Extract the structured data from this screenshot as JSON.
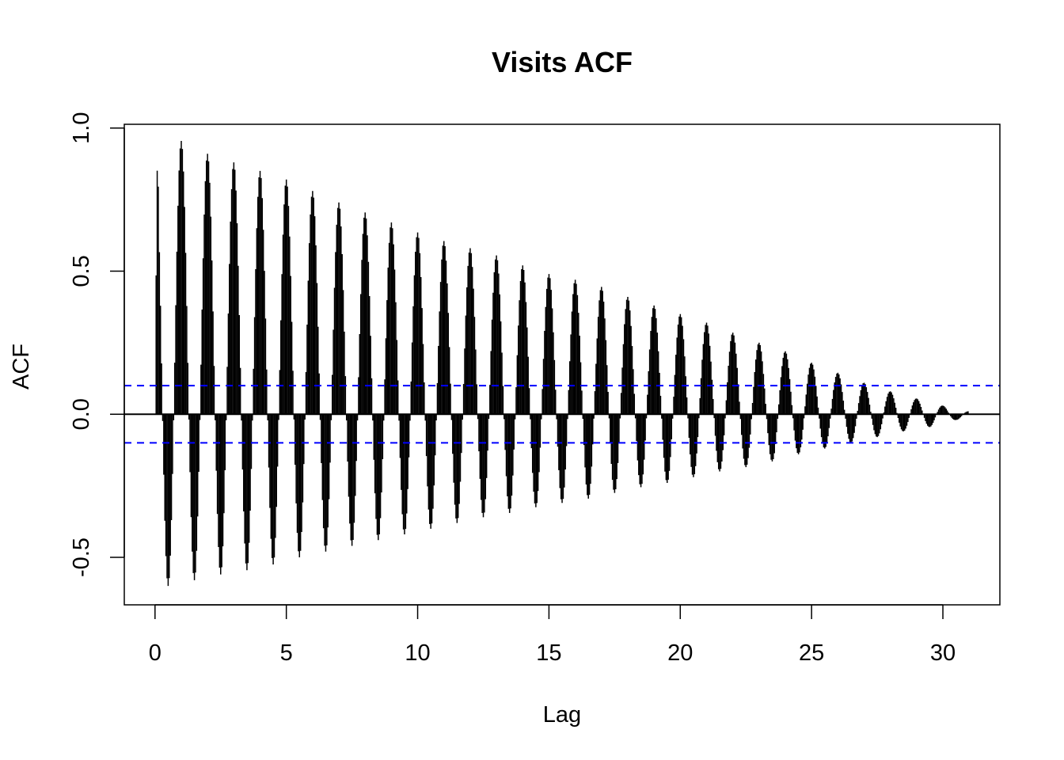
{
  "chart_data": {
    "type": "bar",
    "title": "Visits ACF",
    "xlabel": "Lag",
    "ylabel": "ACF",
    "xlim": [
      -1.17,
      32.17
    ],
    "ylim": [
      -0.666,
      1.013
    ],
    "x_ticks": [
      {
        "value": 0,
        "label": "0"
      },
      {
        "value": 5,
        "label": "5"
      },
      {
        "value": 10,
        "label": "10"
      },
      {
        "value": 15,
        "label": "15"
      },
      {
        "value": 20,
        "label": "20"
      },
      {
        "value": 25,
        "label": "25"
      },
      {
        "value": 30,
        "label": "30"
      }
    ],
    "y_ticks": [
      {
        "value": -0.5,
        "label": "-0.5"
      },
      {
        "value": 0.0,
        "label": "0.0"
      },
      {
        "value": 0.5,
        "label": "0.5"
      },
      {
        "value": 1.0,
        "label": "1.0"
      }
    ],
    "lag_spacing": 0.04167,
    "max_lag": 30.958,
    "confidence_band": 0.1,
    "grid": false,
    "legend": "none",
    "colors": {
      "bars": "#000000",
      "zero_line": "#000000",
      "confidence_lines": "#0000ff"
    },
    "day_lag_peaks": [
      {
        "lag": 0.125,
        "value": 0.795
      },
      {
        "lag": 1,
        "value": 0.955
      },
      {
        "lag": 2,
        "value": 0.91
      },
      {
        "lag": 3,
        "value": 0.88
      },
      {
        "lag": 4,
        "value": 0.85
      },
      {
        "lag": 5,
        "value": 0.82
      },
      {
        "lag": 6,
        "value": 0.78
      },
      {
        "lag": 7,
        "value": 0.74
      },
      {
        "lag": 8,
        "value": 0.705
      },
      {
        "lag": 9,
        "value": 0.67
      },
      {
        "lag": 10,
        "value": 0.635
      },
      {
        "lag": 11,
        "value": 0.605
      },
      {
        "lag": 12,
        "value": 0.58
      },
      {
        "lag": 13,
        "value": 0.555
      },
      {
        "lag": 14,
        "value": 0.52
      },
      {
        "lag": 15,
        "value": 0.49
      },
      {
        "lag": 16,
        "value": 0.47
      },
      {
        "lag": 17,
        "value": 0.445
      },
      {
        "lag": 18,
        "value": 0.41
      },
      {
        "lag": 19,
        "value": 0.38
      },
      {
        "lag": 20,
        "value": 0.35
      },
      {
        "lag": 21,
        "value": 0.32
      },
      {
        "lag": 22,
        "value": 0.285
      },
      {
        "lag": 23,
        "value": 0.25
      },
      {
        "lag": 24,
        "value": 0.22
      },
      {
        "lag": 25,
        "value": 0.18
      },
      {
        "lag": 26,
        "value": 0.145
      },
      {
        "lag": 27,
        "value": 0.11
      },
      {
        "lag": 28,
        "value": 0.08
      },
      {
        "lag": 29,
        "value": 0.055
      },
      {
        "lag": 30,
        "value": 0.03
      },
      {
        "lag": 31,
        "value": 0.01
      }
    ],
    "half_day_troughs": [
      {
        "lag": 0.5,
        "value": -0.6
      },
      {
        "lag": 1.5,
        "value": -0.58
      },
      {
        "lag": 2.5,
        "value": -0.56
      },
      {
        "lag": 3.5,
        "value": -0.545
      },
      {
        "lag": 4.5,
        "value": -0.525
      },
      {
        "lag": 5.5,
        "value": -0.5
      },
      {
        "lag": 6.5,
        "value": -0.48
      },
      {
        "lag": 7.5,
        "value": -0.46
      },
      {
        "lag": 8.5,
        "value": -0.44
      },
      {
        "lag": 9.5,
        "value": -0.42
      },
      {
        "lag": 10.5,
        "value": -0.4
      },
      {
        "lag": 11.5,
        "value": -0.38
      },
      {
        "lag": 12.5,
        "value": -0.36
      },
      {
        "lag": 13.5,
        "value": -0.345
      },
      {
        "lag": 14.5,
        "value": -0.325
      },
      {
        "lag": 15.5,
        "value": -0.31
      },
      {
        "lag": 16.5,
        "value": -0.295
      },
      {
        "lag": 17.5,
        "value": -0.275
      },
      {
        "lag": 18.5,
        "value": -0.255
      },
      {
        "lag": 19.5,
        "value": -0.24
      },
      {
        "lag": 20.5,
        "value": -0.22
      },
      {
        "lag": 21.5,
        "value": -0.2
      },
      {
        "lag": 22.5,
        "value": -0.185
      },
      {
        "lag": 23.5,
        "value": -0.165
      },
      {
        "lag": 24.5,
        "value": -0.14
      },
      {
        "lag": 25.5,
        "value": -0.12
      },
      {
        "lag": 26.5,
        "value": -0.1
      },
      {
        "lag": 27.5,
        "value": -0.08
      },
      {
        "lag": 28.5,
        "value": -0.06
      },
      {
        "lag": 29.5,
        "value": -0.045
      },
      {
        "lag": 30.5,
        "value": -0.02
      }
    ]
  }
}
